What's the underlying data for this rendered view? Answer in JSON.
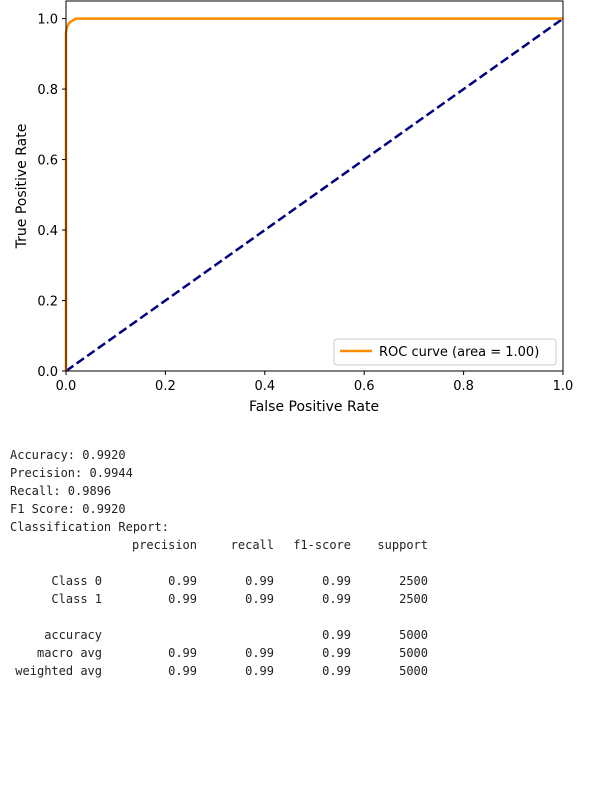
{
  "chart_data": {
    "type": "line",
    "title": "",
    "xlabel": "False Positive Rate",
    "ylabel": "True Positive Rate",
    "xlim": [
      0.0,
      1.0
    ],
    "ylim": [
      0.0,
      1.05
    ],
    "xticks": [
      "0.0",
      "0.2",
      "0.4",
      "0.6",
      "0.8",
      "1.0"
    ],
    "yticks": [
      "0.0",
      "0.2",
      "0.4",
      "0.6",
      "0.8",
      "1.0"
    ],
    "grid": false,
    "legend_position": "lower-right",
    "series": [
      {
        "name": "ROC curve (area = 1.00)",
        "color": "#ff8c00",
        "style": "solid",
        "x": [
          0.0,
          0.0,
          0.002,
          0.005,
          0.01,
          0.02,
          0.05,
          0.2,
          0.5,
          1.0
        ],
        "y": [
          0.0,
          0.96,
          0.975,
          0.985,
          0.992,
          1.0,
          1.0,
          1.0,
          1.0,
          1.0
        ]
      },
      {
        "name": "",
        "color": "#000080",
        "style": "dashed",
        "x": [
          0.0,
          1.0
        ],
        "y": [
          0.0,
          1.0
        ]
      }
    ]
  },
  "metrics": [
    "Accuracy: 0.9920",
    "Precision: 0.9944",
    "Recall: 0.9896",
    "F1 Score: 0.9920"
  ],
  "report": {
    "title": "Classification Report:",
    "headers": [
      "",
      "precision",
      "recall",
      "f1-score",
      "support"
    ],
    "class_rows": [
      [
        "Class 0",
        "0.99",
        "0.99",
        "0.99",
        "2500"
      ],
      [
        "Class 1",
        "0.99",
        "0.99",
        "0.99",
        "2500"
      ]
    ],
    "summary_rows": [
      [
        "accuracy",
        "",
        "",
        "0.99",
        "5000"
      ],
      [
        "macro avg",
        "0.99",
        "0.99",
        "0.99",
        "5000"
      ],
      [
        "weighted avg",
        "0.99",
        "0.99",
        "0.99",
        "5000"
      ]
    ]
  }
}
